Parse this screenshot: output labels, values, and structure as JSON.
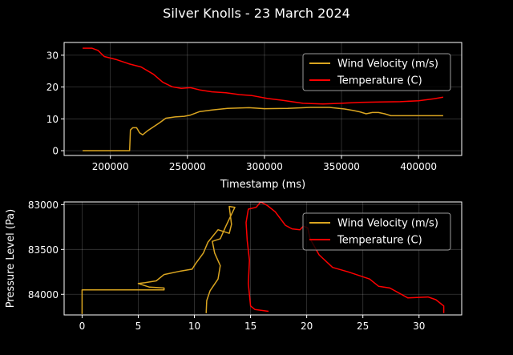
{
  "figure_title": "Silver Knolls - 23 March 2024",
  "colors": {
    "wind": "#DAA520",
    "temperature": "#FF0000",
    "background": "#000000"
  },
  "chart_data": [
    {
      "type": "line",
      "xlabel": "Timestamp (ms)",
      "ylabel": "",
      "xlim": [
        170000,
        428000
      ],
      "ylim": [
        -1.5,
        34
      ],
      "xticks": [
        200000,
        250000,
        300000,
        350000,
        400000
      ],
      "yticks": [
        0,
        10,
        20,
        30
      ],
      "grid": true,
      "legend": "upper-right",
      "series": [
        {
          "name": "Wind Velocity (m/s)",
          "color": "#DAA520",
          "points": [
            [
              182000,
              0
            ],
            [
              212500,
              0
            ],
            [
              213000,
              6.5
            ],
            [
              214500,
              7.2
            ],
            [
              217000,
              7.2
            ],
            [
              219000,
              5.6
            ],
            [
              221000,
              5
            ],
            [
              224000,
              6.2
            ],
            [
              228000,
              7.5
            ],
            [
              232000,
              8.8
            ],
            [
              236000,
              10.2
            ],
            [
              242000,
              10.6
            ],
            [
              248000,
              10.8
            ],
            [
              252000,
              11.2
            ],
            [
              258000,
              12.3
            ],
            [
              266000,
              12.8
            ],
            [
              276000,
              13.3
            ],
            [
              290000,
              13.5
            ],
            [
              300000,
              13.2
            ],
            [
              315000,
              13.3
            ],
            [
              330000,
              13.6
            ],
            [
              342000,
              13.6
            ],
            [
              352000,
              13.1
            ],
            [
              358000,
              12.6
            ],
            [
              362000,
              12.2
            ],
            [
              366000,
              11.6
            ],
            [
              370000,
              12
            ],
            [
              374000,
              12
            ],
            [
              378000,
              11.6
            ],
            [
              382000,
              11
            ],
            [
              400000,
              11
            ],
            [
              416000,
              11
            ]
          ]
        },
        {
          "name": "Temperature (C)",
          "color": "#FF0000",
          "points": [
            [
              182000,
              32.2
            ],
            [
              188000,
              32.2
            ],
            [
              192000,
              31.5
            ],
            [
              196000,
              29.6
            ],
            [
              204000,
              28.6
            ],
            [
              212000,
              27.3
            ],
            [
              220000,
              26.3
            ],
            [
              228000,
              24
            ],
            [
              234000,
              21.5
            ],
            [
              240000,
              20.1
            ],
            [
              246000,
              19.6
            ],
            [
              252000,
              19.8
            ],
            [
              258000,
              19.1
            ],
            [
              266000,
              18.5
            ],
            [
              275000,
              18.2
            ],
            [
              284000,
              17.6
            ],
            [
              292000,
              17.3
            ],
            [
              302000,
              16.4
            ],
            [
              312000,
              15.8
            ],
            [
              325000,
              14.9
            ],
            [
              338000,
              14.7
            ],
            [
              350000,
              14.9
            ],
            [
              362000,
              15.2
            ],
            [
              375000,
              15.3
            ],
            [
              388000,
              15.4
            ],
            [
              400000,
              15.7
            ],
            [
              410000,
              16.3
            ],
            [
              416000,
              16.8
            ]
          ]
        }
      ]
    },
    {
      "type": "line",
      "xlabel": "",
      "ylabel": "Pressure Level (Pa)",
      "xlim": [
        -1.6,
        33.8
      ],
      "ylim": [
        84230,
        82970
      ],
      "y_inverted": true,
      "xticks": [
        0,
        5,
        10,
        15,
        20,
        25,
        30
      ],
      "yticks": [
        83000,
        83500,
        84000
      ],
      "grid": true,
      "legend": "upper-right",
      "series": [
        {
          "name": "Wind Velocity (m/s)",
          "color": "#DAA520",
          "points": [
            [
              0,
              84220
            ],
            [
              0,
              83950
            ],
            [
              7.3,
              83950
            ],
            [
              7.3,
              83930
            ],
            [
              6,
              83920
            ],
            [
              5,
              83880
            ],
            [
              5.6,
              83870
            ],
            [
              6.6,
              83850
            ],
            [
              7.3,
              83780
            ],
            [
              8.8,
              83740
            ],
            [
              9.8,
              83720
            ],
            [
              10.1,
              83660
            ],
            [
              10.8,
              83540
            ],
            [
              11.2,
              83420
            ],
            [
              12.1,
              83280
            ],
            [
              13.1,
              83320
            ],
            [
              13.3,
              83220
            ],
            [
              13.1,
              83020
            ],
            [
              13.6,
              83030
            ],
            [
              12.8,
              83240
            ],
            [
              12.3,
              83380
            ],
            [
              11.6,
              83410
            ],
            [
              11.8,
              83540
            ],
            [
              12.3,
              83680
            ],
            [
              12.1,
              83830
            ],
            [
              11.4,
              83960
            ],
            [
              11.1,
              84070
            ],
            [
              11.05,
              84210
            ]
          ]
        },
        {
          "name": "Temperature (C)",
          "color": "#FF0000",
          "points": [
            [
              16.6,
              84190
            ],
            [
              15.4,
              84170
            ],
            [
              15,
              84130
            ],
            [
              14.8,
              83880
            ],
            [
              14.9,
              83620
            ],
            [
              14.7,
              83400
            ],
            [
              14.6,
              83200
            ],
            [
              14.8,
              83050
            ],
            [
              15.5,
              83030
            ],
            [
              15.9,
              82970
            ],
            [
              16.5,
              83010
            ],
            [
              17.2,
              83080
            ],
            [
              18.1,
              83230
            ],
            [
              18.7,
              83270
            ],
            [
              19.4,
              83280
            ],
            [
              19.7,
              83240
            ],
            [
              20.1,
              83260
            ],
            [
              20.3,
              83380
            ],
            [
              21.1,
              83560
            ],
            [
              22.3,
              83700
            ],
            [
              23.7,
              83750
            ],
            [
              25.6,
              83830
            ],
            [
              26.4,
              83910
            ],
            [
              27.4,
              83930
            ],
            [
              29,
              84040
            ],
            [
              30.8,
              84030
            ],
            [
              31.5,
              84060
            ],
            [
              32.2,
              84130
            ],
            [
              32.2,
              84210
            ]
          ]
        }
      ]
    }
  ]
}
